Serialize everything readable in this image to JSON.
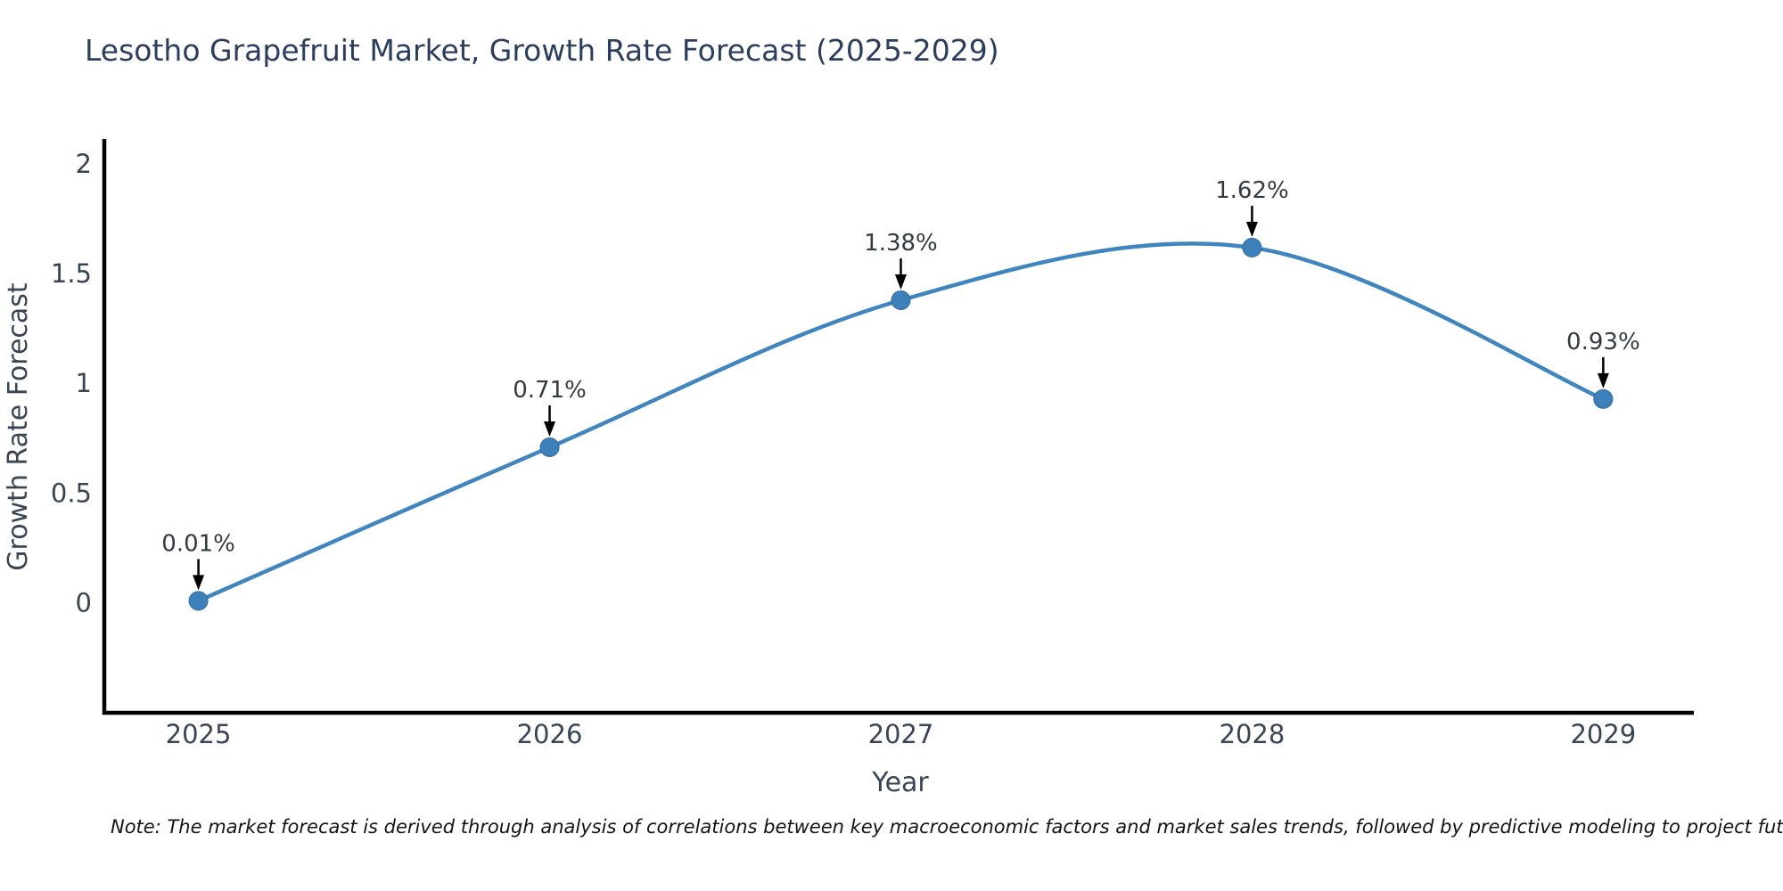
{
  "title": "Lesotho Grapefruit Market, Growth Rate Forecast (2025-2029)",
  "note": "Note: The market forecast is derived through analysis of correlations between key macroeconomic factors and market sales trends, followed by predictive modeling to project future sales",
  "chart_data": {
    "type": "line",
    "title": "Lesotho Grapefruit Market, Growth Rate Forecast (2025-2029)",
    "xlabel": "Year",
    "ylabel": "Growth Rate Forecast",
    "x": [
      2025,
      2026,
      2027,
      2028,
      2029
    ],
    "series": [
      {
        "name": "Growth Rate Forecast",
        "values": [
          0.01,
          0.71,
          1.38,
          1.62,
          0.93
        ]
      }
    ],
    "point_labels": [
      "0.01%",
      "0.71%",
      "1.38%",
      "1.62%",
      "0.93%"
    ],
    "xticks": {
      "values": [
        2025,
        2026,
        2027,
        2028,
        2029
      ],
      "labels": [
        "2025",
        "2026",
        "2027",
        "2028",
        "2029"
      ]
    },
    "yticks": {
      "values": [
        0,
        0.5,
        1,
        1.5,
        2
      ],
      "labels": [
        "0",
        "0.5",
        "1",
        "1.5",
        "2"
      ]
    },
    "xlim": [
      2024.732,
      2029.258
    ],
    "ylim": [
      -0.5,
      2.115
    ],
    "grid": false,
    "legend": "none",
    "line_style": {
      "smoothing": "spline",
      "color": "#4185bf",
      "width": 4.5
    },
    "marker_style": {
      "shape": "circle",
      "color": "#3d80ba",
      "edge_color": "#2f6ba3",
      "diameter": 21
    },
    "annotation_arrow_color": "#000000",
    "colors": {
      "title": "#2c3e5d",
      "axis_line": "#000000",
      "tick_label": "#3a4554",
      "axis_label": "#3a4554",
      "annotation": "#333a42",
      "note": "#141414",
      "background": "#ffffff"
    }
  }
}
